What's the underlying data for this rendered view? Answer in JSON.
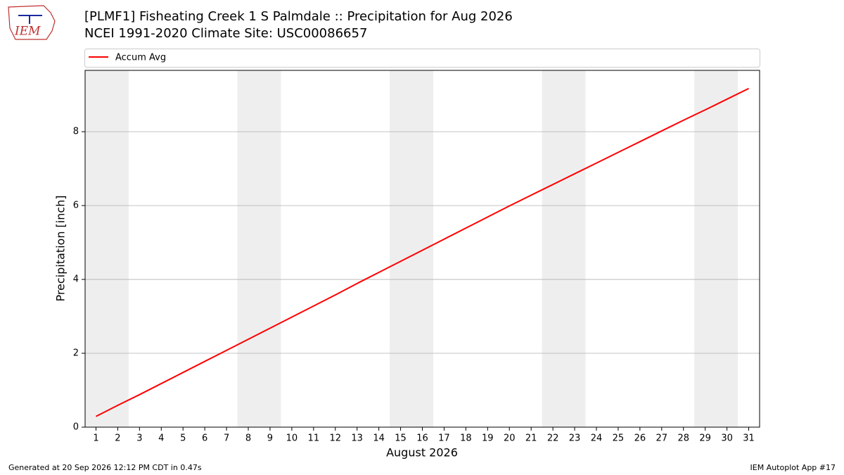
{
  "logo_text": "IEM",
  "chart_data": {
    "type": "line",
    "title": "[PLMF1] Fisheating Creek 1 S Palmdale :: Precipitation for Aug 2026",
    "subtitle": "NCEI 1991-2020 Climate Site: USC00086657",
    "x_label": "August 2026",
    "y_label": "Precipitation [inch]",
    "x": [
      1,
      2,
      3,
      4,
      5,
      6,
      7,
      8,
      9,
      10,
      11,
      12,
      13,
      14,
      15,
      16,
      17,
      18,
      19,
      20,
      21,
      22,
      23,
      24,
      25,
      26,
      27,
      28,
      29,
      30,
      31
    ],
    "series": [
      {
        "name": "Accum Avg",
        "color": "#ff0000",
        "values": [
          0.29,
          0.59,
          0.88,
          1.18,
          1.48,
          1.78,
          2.08,
          2.38,
          2.68,
          2.98,
          3.28,
          3.58,
          3.89,
          4.19,
          4.49,
          4.79,
          5.09,
          5.39,
          5.69,
          5.99,
          6.28,
          6.57,
          6.86,
          7.15,
          7.44,
          7.73,
          8.02,
          8.31,
          8.59,
          8.88,
          9.17
        ]
      }
    ],
    "xlim": [
      0.5,
      31.5
    ],
    "xticks": [
      1,
      2,
      3,
      4,
      5,
      6,
      7,
      8,
      9,
      10,
      11,
      12,
      13,
      14,
      15,
      16,
      17,
      18,
      19,
      20,
      21,
      22,
      23,
      24,
      25,
      26,
      27,
      28,
      29,
      30,
      31
    ],
    "ylim": [
      0,
      9.66
    ],
    "yticks": [
      0,
      2,
      4,
      6,
      8
    ],
    "grid": "y",
    "legend": "top",
    "weekend_spans": [
      [
        0.5,
        2.5
      ],
      [
        7.5,
        9.5
      ],
      [
        14.5,
        16.5
      ],
      [
        21.5,
        23.5
      ],
      [
        28.5,
        30.5
      ]
    ],
    "weekend_color": "#eeeeee",
    "footer_left": "Generated at 20 Sep 2026 12:12 PM CDT in 0.47s",
    "footer_right": "IEM Autoplot App #17"
  }
}
